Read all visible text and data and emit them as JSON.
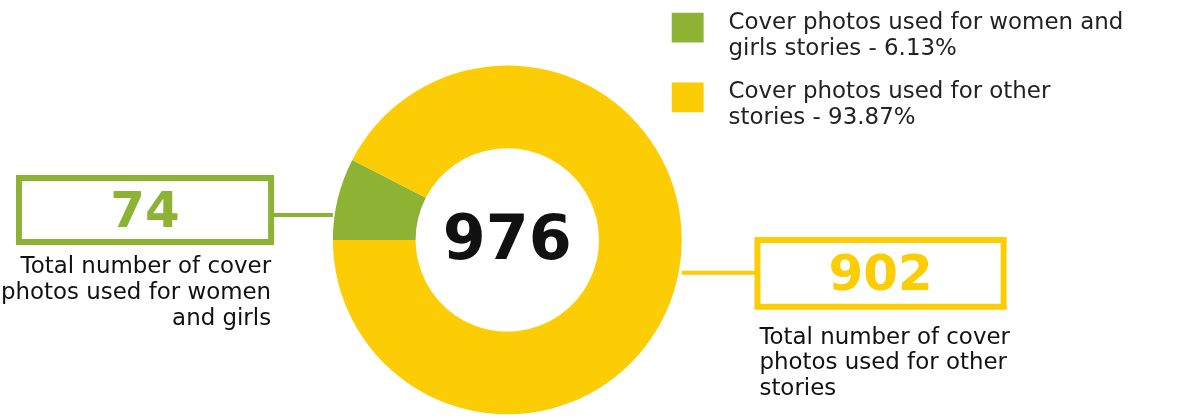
{
  "chart_data": {
    "type": "donut",
    "categories": [
      "Cover photos  used for women and girls stories - 6.13%",
      "Cover photos used for other stories - 93.87%"
    ],
    "values": [
      74,
      902
    ],
    "colors": [
      "#8db234",
      "#fccc04"
    ],
    "data_labels": true,
    "legend": "top right",
    "annotations": [
      "976",
      "Total number of cover photos used for women and girls",
      "Total number of cover photos used for other stories"
    ]
  }
}
